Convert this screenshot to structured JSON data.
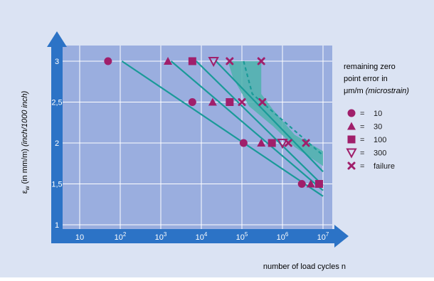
{
  "colors": {
    "outer_bg": "#dbe3f3",
    "plot_bg": "#9aaedf",
    "grid": "#ffffff",
    "axis_blue": "#2c73c6",
    "teal": "#1a9a98",
    "band": "#4db3ad",
    "marker": "#a01f6b",
    "text": "#1a1a1a"
  },
  "legend": {
    "title_lines": [
      "remaining zero",
      "point error in",
      "μm/m"
    ],
    "title_italic": "(microstrain)",
    "items": [
      {
        "symbol": "circle",
        "eq": "=",
        "label": "10"
      },
      {
        "symbol": "triangle-up",
        "eq": "=",
        "label": "30"
      },
      {
        "symbol": "square",
        "eq": "=",
        "label": "100"
      },
      {
        "symbol": "triangle-down-open",
        "eq": "=",
        "label": "300"
      },
      {
        "symbol": "x",
        "eq": "=",
        "label": "failure"
      }
    ]
  },
  "chart_data": {
    "type": "scatter",
    "xlabel": "number of load cycles n",
    "ylabel": "εw (in mm/m) (inch/1000 inch)",
    "ylabel_parts": {
      "main": "ε",
      "sub": "w",
      "unit": " (in mm/m) ",
      "italic": "(inch/1000 inch)"
    },
    "x_scale": "log",
    "xlim": [
      10,
      10000000
    ],
    "ylim": [
      1,
      3
    ],
    "x_ticks": [
      {
        "value": 10,
        "base": "10",
        "exp": ""
      },
      {
        "value": 100,
        "base": "10",
        "exp": "2"
      },
      {
        "value": 1000,
        "base": "10",
        "exp": "3"
      },
      {
        "value": 10000,
        "base": "10",
        "exp": "4"
      },
      {
        "value": 100000,
        "base": "10",
        "exp": "5"
      },
      {
        "value": 1000000,
        "base": "10",
        "exp": "6"
      },
      {
        "value": 10000000,
        "base": "10",
        "exp": "7"
      }
    ],
    "y_ticks": [
      "1",
      "1,5",
      "2",
      "2,5",
      "3"
    ],
    "y_tick_values": [
      1,
      1.5,
      2,
      2.5,
      3
    ],
    "grid": true,
    "legend_position": "right",
    "series": [
      {
        "name": "10",
        "symbol": "circle",
        "points": [
          [
            50,
            3
          ],
          [
            6000,
            2.5
          ],
          [
            110000,
            2
          ],
          [
            3000000,
            1.5
          ]
        ]
      },
      {
        "name": "30",
        "symbol": "triangle-up",
        "points": [
          [
            1500,
            3
          ],
          [
            19000,
            2.5
          ],
          [
            300000,
            2
          ],
          [
            5000000,
            1.5
          ]
        ]
      },
      {
        "name": "100",
        "symbol": "square",
        "points": [
          [
            6000,
            3
          ],
          [
            50000,
            2.5
          ],
          [
            550000,
            2
          ],
          [
            8000000,
            1.5
          ]
        ]
      },
      {
        "name": "300",
        "symbol": "triangle-down-open",
        "points": [
          [
            20000,
            3
          ],
          [
            1000000,
            2
          ]
        ]
      },
      {
        "name": "failure",
        "symbol": "x",
        "points": [
          [
            50000,
            3
          ],
          [
            300000,
            3
          ],
          [
            100000,
            2.5
          ],
          [
            320000,
            2.5
          ],
          [
            1400000,
            2
          ],
          [
            3800000,
            2
          ]
        ]
      }
    ],
    "curves": [
      {
        "style": "solid",
        "points": [
          [
            110,
            3
          ],
          [
            10000000,
            1.35
          ]
        ]
      },
      {
        "style": "solid",
        "points": [
          [
            1800,
            3
          ],
          [
            10000000,
            1.42
          ]
        ]
      },
      {
        "style": "solid",
        "points": [
          [
            7500,
            3
          ],
          [
            10000000,
            1.48
          ]
        ]
      },
      {
        "style": "solid",
        "points": [
          [
            23000,
            3
          ],
          [
            10000000,
            1.65
          ]
        ]
      },
      {
        "style": "dashed",
        "points": [
          [
            110000,
            3
          ],
          [
            180000,
            2.6
          ],
          [
            10000000,
            1.85
          ]
        ]
      }
    ],
    "failure_band": {
      "upper": [
        [
          45000,
          3
        ],
        [
          300000,
          3
        ],
        [
          300000,
          2.6
        ],
        [
          600000,
          2.4
        ],
        [
          2000000,
          2.1
        ],
        [
          10000000,
          1.9
        ]
      ],
      "lower": [
        [
          10000000,
          1.72
        ],
        [
          2000000,
          1.95
        ],
        [
          600000,
          2.2
        ],
        [
          150000,
          2.45
        ],
        [
          60000,
          2.8
        ]
      ]
    }
  }
}
